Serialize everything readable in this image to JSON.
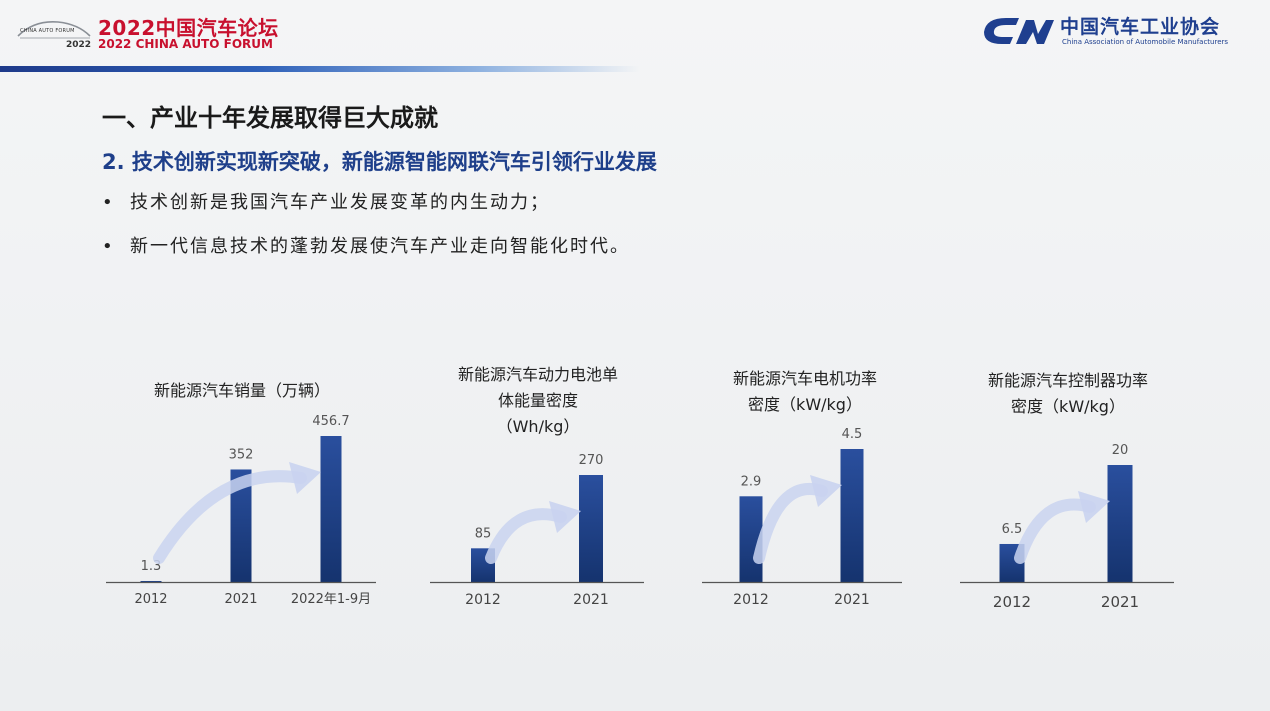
{
  "header": {
    "forum_logo_text": "CHINA AUTO FORUM",
    "forum_logo_year": "2022",
    "forum_title_cn": "2022中国汽车论坛",
    "forum_title_en": "2022 CHINA AUTO FORUM",
    "caam_name_cn": "中国汽车工业协会",
    "caam_name_en": "China Association of Automobile Manufacturers"
  },
  "content": {
    "section_title": "一、产业十年发展取得巨大成就",
    "subtitle": "2. 技术创新实现新突破，新能源智能网联汽车引领行业发展",
    "bullets": [
      "技术创新是我国汽车产业发展变革的内生动力；",
      "新一代信息技术的蓬勃发展使汽车产业走向智能化时代。"
    ],
    "bullet_symbol": "•"
  },
  "colors": {
    "bar_top": "#2a4f9e",
    "bar_bottom": "#1a3a7a",
    "arrow": "#c9d3f0",
    "axis": "#555555"
  },
  "chart_data": [
    {
      "type": "bar",
      "title": "新能源汽车销量（万辆）",
      "categories": [
        "2012",
        "2021",
        "2022年1-9月"
      ],
      "values": [
        1.3,
        352,
        456.7
      ],
      "labels": [
        "1.3",
        "352",
        "456.7"
      ],
      "ylim": [
        0,
        456.7
      ]
    },
    {
      "type": "bar",
      "title": "新能源汽车动力电池单体能量密度（Wh/kg）",
      "title_lines": [
        "新能源汽车动力电池单",
        "体能量密度",
        "（Wh/kg）"
      ],
      "categories": [
        "2012",
        "2021"
      ],
      "values": [
        85,
        270
      ],
      "labels": [
        "85",
        "270"
      ],
      "ylim": [
        0,
        270
      ]
    },
    {
      "type": "bar",
      "title": "新能源汽车电机功率密度（kW/kg）",
      "title_lines": [
        "新能源汽车电机功率",
        "密度（kW/kg）"
      ],
      "categories": [
        "2012",
        "2021"
      ],
      "values": [
        2.9,
        4.5
      ],
      "labels": [
        "2.9",
        "4.5"
      ],
      "ylim": [
        0,
        4.5
      ]
    },
    {
      "type": "bar",
      "title": "新能源汽车控制器功率密度（kW/kg）",
      "title_lines": [
        "新能源汽车控制器功率",
        "密度（kW/kg）"
      ],
      "categories": [
        "2012",
        "2021"
      ],
      "values": [
        6.5,
        20
      ],
      "labels": [
        "6.5",
        "20"
      ],
      "ylim": [
        0,
        20
      ]
    }
  ]
}
